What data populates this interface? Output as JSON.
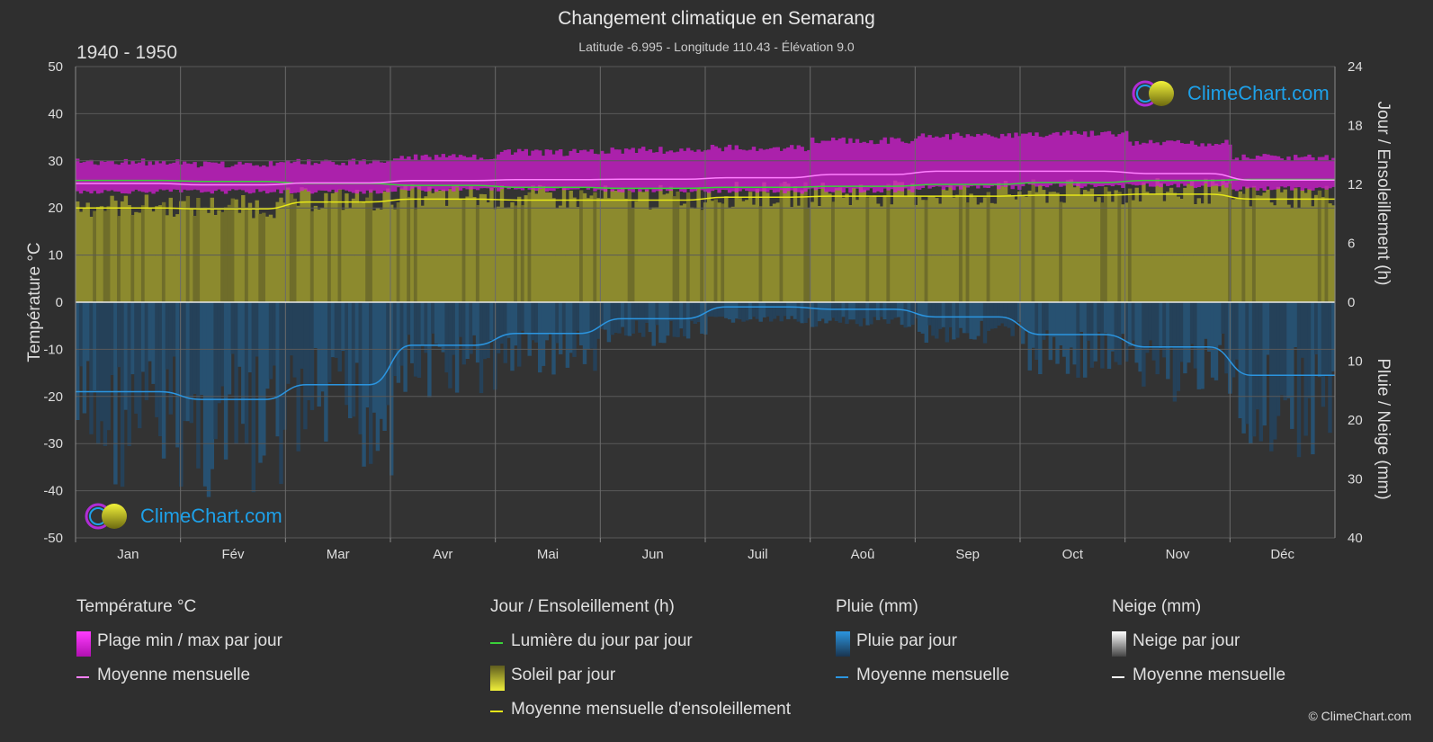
{
  "header": {
    "title": "Changement climatique en Semarang",
    "subtitle": "Latitude -6.995 - Longitude 110.43 - Élévation 9.0",
    "years": "1940 - 1950"
  },
  "brand": {
    "logo_text": "ClimeChart.com",
    "copyright": "© ClimeChart.com"
  },
  "colors": {
    "background": "#2f2f2f",
    "temp_range": "#d41cd4",
    "temp_mean": "#ff80ff",
    "daylight": "#3ad13a",
    "sunshine_fill": "#8c8a2e",
    "sunshine_mean": "#e6e619",
    "rain": "#1f6aa5",
    "rain_mean": "#2b95e0",
    "snow_mean": "#ffffff",
    "logo": "#1ea0e8"
  },
  "chart_data": {
    "type": "area",
    "categories": [
      "Jan",
      "Fév",
      "Mar",
      "Avr",
      "Mai",
      "Jun",
      "Juil",
      "Aoû",
      "Sep",
      "Oct",
      "Nov",
      "Déc"
    ],
    "axes": {
      "left": {
        "label": "Température °C",
        "ylim": [
          -50,
          50
        ],
        "ticks": [
          50,
          40,
          30,
          20,
          10,
          0,
          -10,
          -20,
          -30,
          -40,
          -50
        ]
      },
      "right_top": {
        "label": "Jour / Ensoleillement (h)",
        "ylim": [
          0,
          24
        ],
        "ticks": [
          24,
          18,
          12,
          6,
          0
        ]
      },
      "right_bottom": {
        "label": "Pluie / Neige (mm)",
        "ylim": [
          0,
          40
        ],
        "ticks": [
          0,
          10,
          20,
          30,
          40
        ]
      }
    },
    "grid": true,
    "series": [
      {
        "name": "Moyenne mensuelle",
        "group": "Température °C",
        "unit": "°C",
        "values": [
          25.2,
          24.9,
          25.3,
          25.8,
          26.0,
          26.1,
          26.4,
          27.1,
          27.8,
          27.8,
          27.3,
          25.9
        ]
      },
      {
        "name": "Plage min / max par jour",
        "group": "Température °C",
        "unit": "°C",
        "min": [
          23.0,
          23.0,
          23.0,
          23.4,
          23.5,
          23.3,
          23.0,
          23.2,
          23.8,
          24.2,
          24.2,
          23.6
        ],
        "max": [
          30.5,
          30.0,
          30.5,
          31.5,
          32.5,
          33.0,
          33.5,
          35.0,
          36.0,
          36.5,
          34.5,
          31.5
        ]
      },
      {
        "name": "Lumière du jour par jour",
        "group": "Jour / Ensoleillement (h)",
        "unit": "h",
        "values": [
          12.4,
          12.3,
          12.1,
          11.9,
          11.7,
          11.6,
          11.7,
          11.8,
          12.0,
          12.2,
          12.4,
          12.5
        ]
      },
      {
        "name": "Moyenne mensuelle d'ensoleillement",
        "group": "Jour / Ensoleillement (h)",
        "unit": "h",
        "values": [
          9.6,
          9.5,
          10.2,
          10.5,
          10.4,
          10.4,
          10.7,
          10.8,
          10.8,
          10.9,
          11.0,
          10.5
        ]
      },
      {
        "name": "Moyenne mensuelle",
        "group": "Pluie (mm)",
        "unit": "mm",
        "values": [
          15.2,
          16.5,
          14.0,
          7.3,
          5.3,
          2.8,
          0.8,
          1.2,
          2.5,
          5.5,
          7.6,
          12.4
        ]
      },
      {
        "name": "Moyenne mensuelle",
        "group": "Neige (mm)",
        "unit": "mm",
        "values": [
          0,
          0,
          0,
          0,
          0,
          0,
          0,
          0,
          0,
          0,
          0,
          0
        ]
      }
    ]
  },
  "legend": {
    "temperature": {
      "title": "Température °C",
      "range": "Plage min / max par jour",
      "mean": "Moyenne mensuelle"
    },
    "sun": {
      "title": "Jour / Ensoleillement (h)",
      "daylight": "Lumière du jour par jour",
      "sunshine": "Soleil par jour",
      "mean": "Moyenne mensuelle d'ensoleillement"
    },
    "rain": {
      "title": "Pluie (mm)",
      "daily": "Pluie par jour",
      "mean": "Moyenne mensuelle"
    },
    "snow": {
      "title": "Neige (mm)",
      "daily": "Neige par jour",
      "mean": "Moyenne mensuelle"
    }
  }
}
